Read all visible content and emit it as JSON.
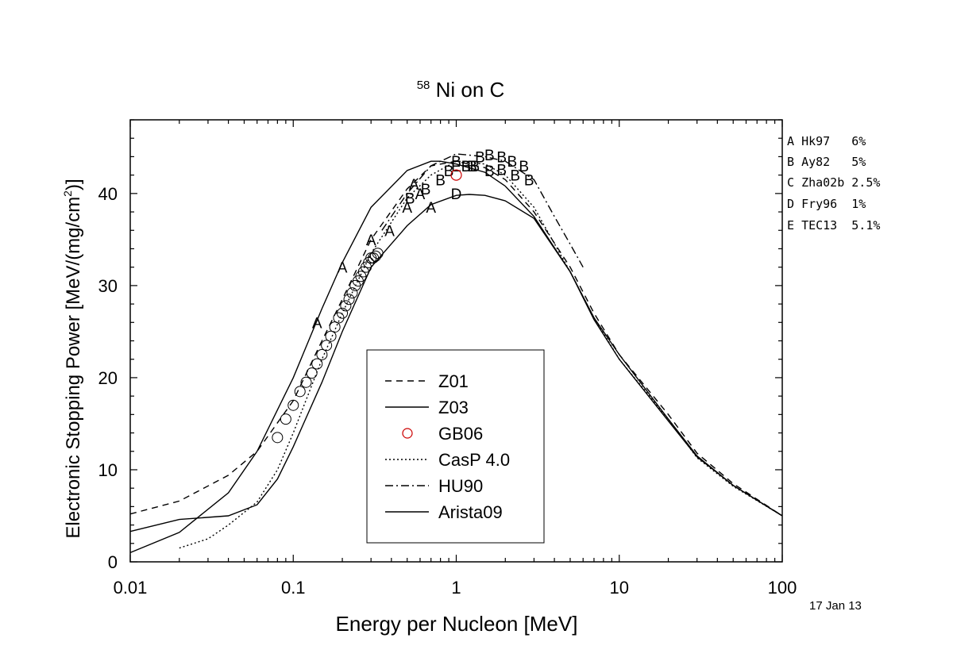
{
  "chart_data": {
    "type": "line",
    "title_sup": "58",
    "title": "Ni on C",
    "xlabel": "Energy per Nucleon [MeV]",
    "ylabel_main": "Electronic Stopping Power [MeV/(mg/cm",
    "ylabel_sup": "2",
    "ylabel_end": ")]",
    "xscale": "log",
    "xlim": [
      0.01,
      100
    ],
    "ylim": [
      0,
      48
    ],
    "x_ticks": [
      "0.01",
      "0.1",
      "1",
      "10",
      "100"
    ],
    "y_ticks": [
      "0",
      "10",
      "20",
      "30",
      "40"
    ],
    "date": "17 Jan 13",
    "legend": [
      "Z01",
      "Z03",
      "GB06",
      "CasP 4.0",
      "HU90",
      "Arista09"
    ],
    "references": [
      {
        "letter": "A",
        "text": "Hk97   6%"
      },
      {
        "letter": "B",
        "text": "Ay82   5%"
      },
      {
        "letter": "C",
        "text": "Zha02b 2.5%"
      },
      {
        "letter": "D",
        "text": "Fry96  1%"
      },
      {
        "letter": "E",
        "text": "TEC13  5.1%"
      }
    ],
    "series": [
      {
        "name": "Z01",
        "dash": "8 6",
        "color": "#000000",
        "x": [
          0.01,
          0.02,
          0.04,
          0.06,
          0.1,
          0.15,
          0.2,
          0.3,
          0.5,
          0.7,
          1,
          1.5,
          2,
          3,
          5,
          7,
          10,
          20,
          30,
          50,
          100
        ],
        "y": [
          5.2,
          6.6,
          9.4,
          12,
          17.5,
          24,
          28.5,
          35,
          40.5,
          43,
          43.5,
          42.8,
          41.5,
          38,
          32,
          27,
          22.5,
          16,
          11.8,
          8.5,
          5
        ]
      },
      {
        "name": "Z03",
        "dash": "",
        "color": "#000000",
        "x": [
          0.01,
          0.02,
          0.04,
          0.06,
          0.1,
          0.15,
          0.2,
          0.3,
          0.5,
          0.7,
          0.8,
          1,
          1.5,
          2,
          3,
          5,
          7,
          10,
          20,
          30,
          50,
          100
        ],
        "y": [
          1,
          3.2,
          7.5,
          12,
          20,
          27.5,
          32.5,
          38.5,
          42.5,
          43.5,
          43.5,
          43.2,
          42.3,
          40.8,
          37.5,
          31.5,
          26.5,
          22.5,
          15.5,
          11.5,
          8.3,
          5
        ]
      },
      {
        "name": "CasP 4.0",
        "dash": "2 3",
        "color": "#000000",
        "x": [
          0.02,
          0.03,
          0.04,
          0.06,
          0.08,
          0.1,
          0.15,
          0.2,
          0.3,
          0.5,
          0.7,
          1,
          1.5,
          2,
          3,
          5,
          7,
          10,
          20,
          30,
          50,
          100
        ],
        "y": [
          1.5,
          2.5,
          4,
          6.5,
          10,
          14,
          22,
          27,
          33.5,
          39.5,
          42,
          43.5,
          43.2,
          42,
          38.5,
          31.5,
          26.5,
          22,
          15.5,
          11.3,
          8.2,
          5
        ]
      },
      {
        "name": "HU90",
        "dash": "10 4 2 4",
        "color": "#000000",
        "x": [
          0.35,
          0.5,
          0.7,
          1,
          1.5,
          2,
          3,
          4,
          5,
          6
        ],
        "y": [
          36,
          40,
          43,
          44.3,
          44,
          43.5,
          41.5,
          37.5,
          34.5,
          32
        ]
      },
      {
        "name": "Arista09",
        "dash": "",
        "color": "#000000",
        "x": [
          0.01,
          0.02,
          0.04,
          0.06,
          0.08,
          0.1,
          0.15,
          0.2,
          0.3,
          0.5,
          0.7,
          1,
          1.2,
          1.5,
          2,
          3,
          5,
          7,
          10,
          20,
          30,
          50,
          100
        ],
        "y": [
          3.3,
          4.6,
          5,
          6.2,
          9,
          12.5,
          19.5,
          25,
          32,
          36.5,
          38.8,
          39.8,
          39.9,
          39.8,
          39.2,
          37.3,
          31.5,
          26.3,
          22,
          15.3,
          11.4,
          8.3,
          5
        ]
      }
    ],
    "gb06": {
      "name": "GB06",
      "color": "#cc0000",
      "x": [
        1.0
      ],
      "y": [
        42.0
      ]
    },
    "points": [
      {
        "label": "A",
        "x": [
          0.14,
          0.2,
          0.3,
          0.39,
          0.5,
          0.55,
          0.6,
          0.7
        ],
        "y": [
          26,
          32,
          35,
          36,
          38.5,
          41,
          40,
          38.5
        ]
      },
      {
        "label": "B",
        "x": [
          0.52,
          0.65,
          0.8,
          0.9,
          1,
          1.15,
          1.25,
          1.4,
          1.6,
          1.9,
          2.2,
          2.6
        ],
        "y": [
          39.5,
          40.5,
          41.5,
          42.5,
          43.5,
          43,
          43,
          44,
          44.2,
          44,
          43.5,
          43
        ]
      },
      {
        "label": "B",
        "x": [
          1.3,
          1.6,
          1.9,
          2.3,
          2.8
        ],
        "y": [
          43,
          42.5,
          42.6,
          42,
          41.5
        ]
      },
      {
        "label": "C",
        "x": [
          0.08,
          0.09,
          0.1,
          0.11,
          0.12,
          0.13,
          0.14,
          0.15,
          0.16,
          0.17,
          0.18,
          0.19,
          0.2,
          0.21,
          0.22,
          0.23,
          0.24,
          0.25,
          0.26,
          0.27,
          0.28,
          0.29,
          0.3,
          0.31,
          0.32,
          0.33
        ],
        "y": [
          13.5,
          15.5,
          17,
          18.5,
          19.5,
          20.5,
          21.5,
          22.5,
          23.5,
          24.5,
          25.5,
          26.5,
          27,
          27.8,
          28.5,
          29.2,
          30,
          30.5,
          31,
          31.5,
          32,
          32.5,
          33,
          33,
          33.2,
          33.5
        ]
      },
      {
        "label": "D",
        "x": [
          1.0
        ],
        "y": [
          40
        ]
      },
      {
        "label": "E",
        "x": [
          1.0
        ],
        "y": [
          43
        ]
      }
    ]
  }
}
